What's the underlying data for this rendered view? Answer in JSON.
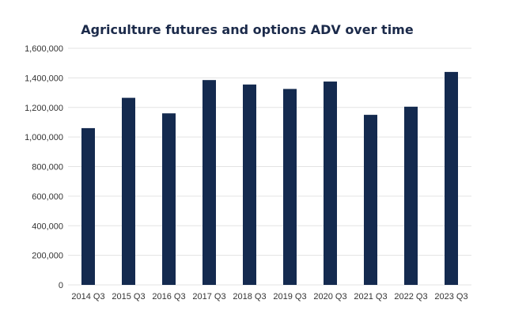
{
  "chart_data": {
    "type": "bar",
    "title": "Agriculture futures and options ADV over time",
    "categories": [
      "2014 Q3",
      "2015 Q3",
      "2016 Q3",
      "2017 Q3",
      "2018 Q3",
      "2019 Q3",
      "2020 Q3",
      "2021 Q3",
      "2022 Q3",
      "2023 Q3"
    ],
    "values": [
      1060000,
      1265000,
      1160000,
      1385000,
      1355000,
      1325000,
      1375000,
      1150000,
      1205000,
      1440000
    ],
    "y_ticks": [
      "0",
      "200,000",
      "400,000",
      "600,000",
      "800,000",
      "1,000,000",
      "1,200,000",
      "1,400,000",
      "1,600,000"
    ],
    "ylim": [
      0,
      1600000
    ],
    "xlabel": "",
    "ylabel": "",
    "grid": true,
    "bar_color": "#142a4f",
    "grid_color": "#e3e3e3"
  }
}
